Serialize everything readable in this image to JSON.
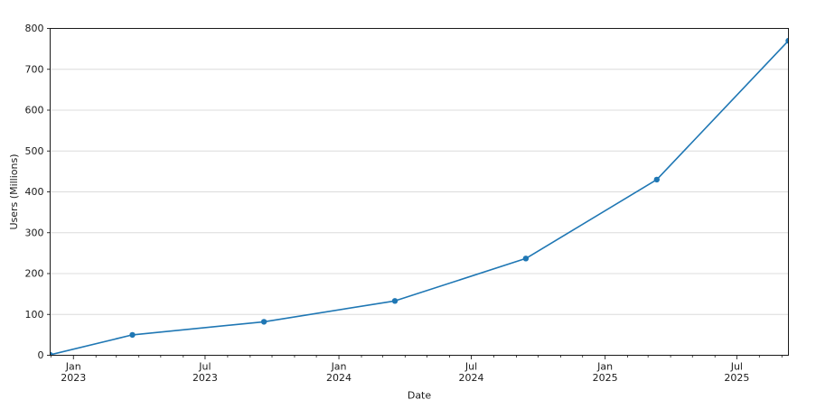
{
  "page": {
    "background": "#ffffff"
  },
  "chart_data": {
    "type": "line",
    "title": "",
    "xlabel": "Date",
    "ylabel": "Users (Millions)",
    "xlim": [
      "2022-11-30",
      "2025-09-10"
    ],
    "ylim": [
      0,
      800
    ],
    "ytick_step": 100,
    "y_tick_labels": [
      "0",
      "100",
      "200",
      "300",
      "400",
      "500",
      "600",
      "700",
      "800"
    ],
    "grid": "horizontal-major-only",
    "grid_color": "#dcdcdc",
    "axis_color": "#1a1a1a",
    "background_color": "#ffffff",
    "legend": "none",
    "x_major_ticks": [
      {
        "date": "2023-01-01",
        "month": "Jan",
        "year": "2023"
      },
      {
        "date": "2023-07-01",
        "month": "Jul",
        "year": "2023"
      },
      {
        "date": "2024-01-01",
        "month": "Jan",
        "year": "2024"
      },
      {
        "date": "2024-07-01",
        "month": "Jul",
        "year": "2024"
      },
      {
        "date": "2025-01-01",
        "month": "Jan",
        "year": "2025"
      },
      {
        "date": "2025-07-01",
        "month": "Jul",
        "year": "2025"
      }
    ],
    "x_minor_ticks": "every-month",
    "series": [
      {
        "name": "users",
        "color": "#1f77b4",
        "marker": "circle",
        "points": [
          {
            "date": "2022-11-30",
            "value": 1
          },
          {
            "date": "2023-03-23",
            "value": 50
          },
          {
            "date": "2023-09-20",
            "value": 82
          },
          {
            "date": "2024-03-18",
            "value": 133
          },
          {
            "date": "2024-09-14",
            "value": 237
          },
          {
            "date": "2025-03-13",
            "value": 430
          },
          {
            "date": "2025-09-10",
            "value": 770
          }
        ]
      }
    ]
  }
}
